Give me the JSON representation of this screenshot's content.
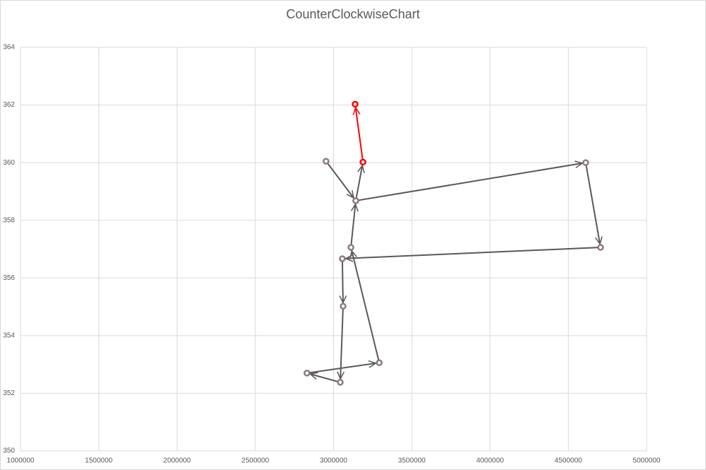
{
  "chart_data": {
    "type": "scatter",
    "title": "CounterClockwiseChart",
    "series": [
      {
        "color": "#595959",
        "marker_color": "#8c7b7b",
        "x": [
          2952000,
          3142000,
          4611000,
          4706000,
          3056000,
          3061000,
          3043000,
          2830000,
          3292000,
          3111000,
          3142000,
          3188000
        ],
        "values": [
          360.05,
          358.68,
          360.0,
          357.06,
          356.67,
          355.02,
          352.38,
          352.7,
          353.06,
          357.06,
          358.68,
          360.02
        ]
      },
      {
        "color": "#ff0000",
        "marker_color": "#ff0000",
        "x": [
          3188000,
          3138000
        ],
        "values": [
          360.02,
          362.03
        ]
      }
    ],
    "xlim": [
      1000000,
      5000000
    ],
    "xticks": [
      1000000,
      1500000,
      2000000,
      2500000,
      3000000,
      3500000,
      4000000,
      4500000,
      5000000
    ],
    "ylim": [
      350,
      364
    ],
    "yticks": [
      350,
      352,
      354,
      356,
      358,
      360,
      362,
      364
    ],
    "grid": true,
    "arrows": true
  }
}
